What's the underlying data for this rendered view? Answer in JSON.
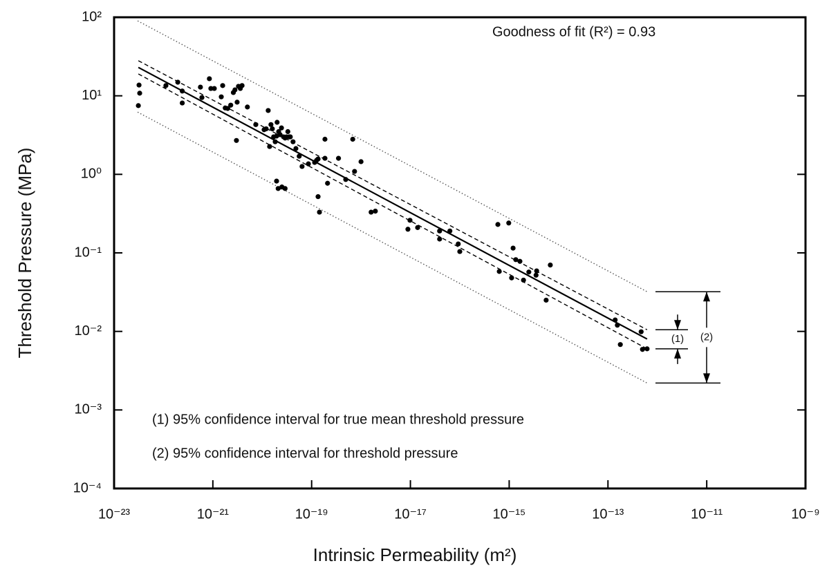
{
  "chart_data": {
    "type": "scatter",
    "xscale": "log",
    "yscale": "log",
    "x_label": "Intrinsic Permeability (m²)",
    "y_label": "Threshold Pressure (MPa)",
    "annotation": "Goodness of fit (R²)  =  0.93",
    "notes": [
      "(1) 95% confidence interval for true mean threshold pressure",
      "(2) 95% confidence interval for threshold pressure"
    ],
    "bracket_labels": [
      "(1)",
      "(2)"
    ],
    "xlim": [
      1e-23,
      1e-09
    ],
    "ylim": [
      0.0001,
      100
    ],
    "xticks": [
      {
        "value": 1e-23,
        "label": "10⁻²³"
      },
      {
        "value": 1e-21,
        "label": "10⁻²¹"
      },
      {
        "value": 1e-19,
        "label": "10⁻¹⁹"
      },
      {
        "value": 1e-17,
        "label": "10⁻¹⁷"
      },
      {
        "value": 1e-15,
        "label": "10⁻¹⁵"
      },
      {
        "value": 1e-13,
        "label": "10⁻¹³"
      },
      {
        "value": 1e-11,
        "label": "10⁻¹¹"
      },
      {
        "value": 1e-09,
        "label": "10⁻⁹"
      }
    ],
    "yticks": [
      {
        "value": 0.0001,
        "label": "10⁻⁴"
      },
      {
        "value": 0.001,
        "label": "10⁻³"
      },
      {
        "value": 0.01,
        "label": "10⁻²"
      },
      {
        "value": 0.1,
        "label": "10⁻¹"
      },
      {
        "value": 1,
        "label": "10⁰"
      },
      {
        "value": 10,
        "label": "10¹"
      },
      {
        "value": 100,
        "label": "10²"
      }
    ],
    "color": "#000000",
    "x": [
      3.1e-23,
      3.3e-23,
      3.2e-23,
      1.12e-22,
      1.95e-22,
      2.4e-22,
      2.4e-22,
      5.6e-22,
      6e-22,
      8.5e-22,
      9.1e-22,
      1.07e-21,
      1.48e-21,
      1.58e-21,
      1.78e-21,
      2e-21,
      2.3e-21,
      2.6e-21,
      2.8e-21,
      3e-21,
      3.1e-21,
      3.3e-21,
      3.6e-21,
      3.9e-21,
      5e-21,
      7.4e-21,
      1.09e-20,
      1.2e-20,
      1.32e-20,
      1.41e-20,
      1.5e-20,
      1.6e-20,
      1.7e-20,
      1.83e-20,
      1.95e-20,
      2e-20,
      2.15e-20,
      2.3e-20,
      2.45e-20,
      2.7e-20,
      2.9e-20,
      3.1e-20,
      3.3e-20,
      3.5e-20,
      3.7e-20,
      4.2e-20,
      4.8e-20,
      5.6e-20,
      6.4e-20,
      8.6e-20,
      1.15e-19,
      1.26e-19,
      1.35e-19,
      1.86e-19,
      2.1e-19,
      1.35e-19,
      1.44e-19,
      1.95e-20,
      2.1e-20,
      2.5e-20,
      2.9e-20,
      1.86e-19,
      3.5e-19,
      4.9e-19,
      6.8e-19,
      7.4e-19,
      1e-18,
      1.6e-18,
      1.95e-18,
      8.9e-18,
      9.8e-18,
      1.4e-17,
      3.9e-17,
      3.9e-17,
      6.3e-17,
      9.3e-17,
      1e-16,
      5.9e-16,
      9.8e-16,
      6.3e-16,
      1.2e-15,
      1.12e-15,
      1.36e-15,
      1.65e-15,
      1.95e-15,
      2.5e-15,
      3.5e-15,
      3.6e-15,
      5.6e-15,
      6.8e-15,
      1.4e-13,
      1.55e-13,
      1.78e-13,
      4.7e-13,
      5e-13,
      6.2e-13
    ],
    "values": [
      7.5,
      10.8,
      13.7,
      13.5,
      14.9,
      11.5,
      8.1,
      12.9,
      9.5,
      16.5,
      12.4,
      12.4,
      9.7,
      13.5,
      7.0,
      6.9,
      7.6,
      11,
      11.9,
      2.7,
      8.3,
      13.2,
      12.4,
      13.5,
      7.2,
      4.3,
      3.7,
      3.8,
      6.5,
      2.26,
      4.3,
      3.8,
      3.0,
      2.6,
      3.07,
      4.6,
      3.5,
      3.2,
      3.9,
      3.0,
      2.9,
      3.0,
      3.5,
      3.0,
      3.0,
      2.6,
      2.13,
      1.7,
      1.26,
      1.36,
      1.42,
      1.51,
      1.57,
      1.6,
      0.77,
      0.52,
      0.33,
      0.82,
      0.66,
      0.69,
      0.66,
      2.8,
      1.6,
      0.86,
      2.8,
      1.09,
      1.45,
      0.33,
      0.34,
      0.2,
      0.26,
      0.21,
      0.19,
      0.15,
      0.19,
      0.13,
      0.104,
      0.23,
      0.24,
      0.058,
      0.115,
      0.048,
      0.082,
      0.078,
      0.045,
      0.057,
      0.052,
      0.059,
      0.025,
      0.07,
      0.014,
      0.012,
      0.0068,
      0.0099,
      0.0059,
      0.006
    ],
    "lines": [
      {
        "x": [
          3.1e-23,
          6.2e-13
        ],
        "values": [
          23,
          0.008
        ],
        "color": "#000000",
        "style": "solid"
      },
      {
        "x": [
          3.1e-23,
          6.2e-13
        ],
        "values": [
          28,
          0.0105
        ],
        "color": "#000000",
        "style": "dashed"
      },
      {
        "x": [
          3.1e-23,
          6.2e-13
        ],
        "values": [
          19,
          0.006
        ],
        "color": "#000000",
        "style": "dashed"
      },
      {
        "x": [
          3e-23,
          6.2e-13
        ],
        "values": [
          90,
          0.032
        ],
        "color": "#555555",
        "style": "dotted"
      },
      {
        "x": [
          3e-23,
          6.2e-13
        ],
        "values": [
          6.2,
          0.0022
        ],
        "color": "#555555",
        "style": "dotted"
      }
    ]
  }
}
